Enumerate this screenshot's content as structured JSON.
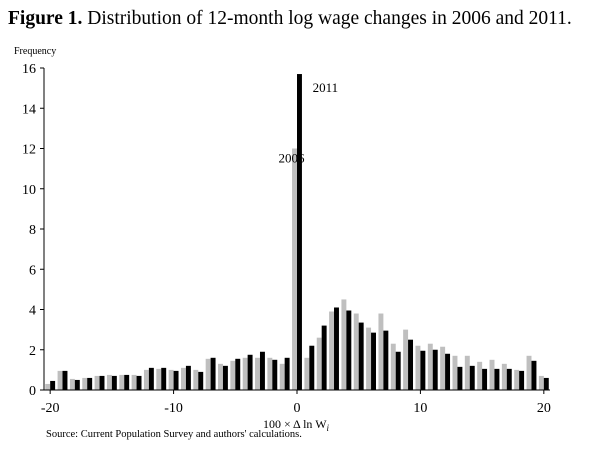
{
  "figure": {
    "number_label": "Figure 1.",
    "title": "Distribution of 12-month log wage changes in 2006 and 2011.",
    "source": "Source: Current Population Survey and authors' calculations."
  },
  "chart_data": {
    "type": "bar",
    "ylabel": "Frequency",
    "xlabel": "100 × Δ ln W",
    "xlabel_subscript": "i",
    "xlim": [
      -20.5,
      20.5
    ],
    "ylim": [
      0,
      16
    ],
    "x_ticks": [
      -20,
      -10,
      0,
      10,
      20
    ],
    "x_tick_labels": [
      "-20",
      "-10",
      "0",
      "10",
      "20"
    ],
    "y_ticks": [
      0,
      2,
      4,
      6,
      8,
      10,
      12,
      14,
      16
    ],
    "y_tick_labels": [
      "0",
      "2",
      "4",
      "6",
      "8",
      "10",
      "12",
      "14",
      "16"
    ],
    "grid": false,
    "legend": "direct-labels",
    "x": [
      -20,
      -19,
      -18,
      -17,
      -16,
      -15,
      -14,
      -13,
      -12,
      -11,
      -10,
      -9,
      -8,
      -7,
      -6,
      -5,
      -4,
      -3,
      -2,
      -1,
      0,
      1,
      2,
      3,
      4,
      5,
      6,
      7,
      8,
      9,
      10,
      11,
      12,
      13,
      14,
      15,
      16,
      17,
      18,
      19,
      20
    ],
    "series": [
      {
        "name": "2006",
        "color": "#bfbfbf",
        "values": [
          0.3,
          0.95,
          0.55,
          0.6,
          0.7,
          0.75,
          0.75,
          0.75,
          1.0,
          1.05,
          1.0,
          1.1,
          1.0,
          1.55,
          1.3,
          1.45,
          1.6,
          1.6,
          1.6,
          1.3,
          12.0,
          1.6,
          2.6,
          3.9,
          4.5,
          3.8,
          3.1,
          3.8,
          2.3,
          3.0,
          2.2,
          2.3,
          2.15,
          1.7,
          1.7,
          1.4,
          1.5,
          1.3,
          1.0,
          1.7,
          0.7
        ]
      },
      {
        "name": "2011",
        "color": "#000000",
        "values": [
          0.45,
          0.95,
          0.5,
          0.6,
          0.7,
          0.7,
          0.75,
          0.7,
          1.1,
          1.1,
          0.95,
          1.2,
          0.9,
          1.6,
          1.2,
          1.55,
          1.75,
          1.9,
          1.5,
          1.6,
          15.7,
          2.2,
          3.2,
          4.1,
          3.95,
          3.35,
          2.85,
          2.95,
          1.9,
          2.5,
          1.95,
          2.0,
          1.8,
          1.15,
          1.2,
          1.05,
          1.05,
          1.05,
          0.95,
          1.45,
          0.6
        ]
      }
    ],
    "annotations": [
      {
        "text": "2006",
        "x": -0.45,
        "y": 11.3,
        "color": "#bfbfbf"
      },
      {
        "text": "2011",
        "x": 2.3,
        "y": 14.8,
        "color": "#000000"
      }
    ]
  }
}
